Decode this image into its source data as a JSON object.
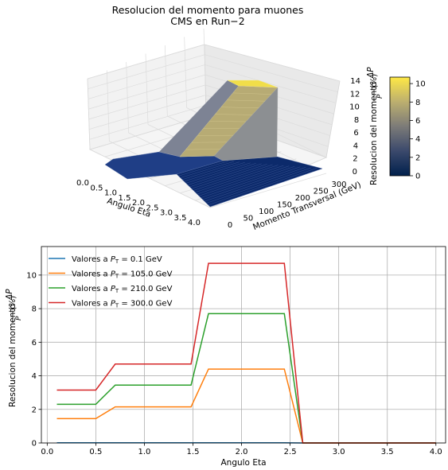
{
  "chart_data": [
    {
      "type": "surface3d",
      "title": "Resolucion del momento para muones",
      "subtitle": "CMS en Run−2",
      "xlabel": "Angulo Eta",
      "ylabel": "Momento Transversal (GeV)",
      "zlabel": "Resolucion del momento",
      "zlabel_frac_num": "ΔP",
      "zlabel_frac_den": "P",
      "zlabel_unit": "(%)",
      "x_ticks": [
        "0.0",
        "0.5",
        "1.0",
        "1.5",
        "2.0",
        "2.5",
        "3.0",
        "3.5",
        "4.0"
      ],
      "y_ticks": [
        "0",
        "50",
        "100",
        "150",
        "200",
        "250",
        "300"
      ],
      "z_ticks": [
        "0",
        "2",
        "4",
        "6",
        "8",
        "10",
        "12",
        "14"
      ],
      "colorbar_ticks": [
        "0",
        "2",
        "4",
        "6",
        "8",
        "10"
      ],
      "colormap": "cividis",
      "xlim": [
        0,
        4
      ],
      "ylim": [
        0,
        300
      ],
      "zlim": [
        0,
        14
      ],
      "colorbar_range": [
        0,
        10.7
      ],
      "grid": true
    },
    {
      "type": "line",
      "xlabel": "Angulo Eta",
      "ylabel": "Resolucion del momento",
      "ylabel_frac_num": "ΔP",
      "ylabel_frac_den": "P",
      "ylabel_unit": "(%)",
      "xlim": [
        -0.06,
        4.1
      ],
      "ylim": [
        0,
        11.7
      ],
      "x_ticks": [
        "0.0",
        "0.5",
        "1.0",
        "1.5",
        "2.0",
        "2.5",
        "3.0",
        "3.5",
        "4.0"
      ],
      "y_ticks": [
        "0",
        "2",
        "4",
        "6",
        "8",
        "10"
      ],
      "grid": true,
      "legend_position": "top-left",
      "x": [
        0.1,
        0.5,
        0.7,
        1.0,
        1.48,
        1.66,
        2.0,
        2.44,
        2.63,
        3.0,
        3.5,
        4.0
      ],
      "series": [
        {
          "label_prefix": "Valores a ",
          "label_var": "P",
          "label_sub": "T",
          "label_suffix": " = 0.1 GeV",
          "color": "#1f77b4",
          "values": [
            0.01,
            0.01,
            0.01,
            0.01,
            0.01,
            0.01,
            0.01,
            0.01,
            0,
            0,
            0,
            0
          ]
        },
        {
          "label_prefix": "Valores a ",
          "label_var": "P",
          "label_sub": "T",
          "label_suffix": " = 105.0 GeV",
          "color": "#ff7f0e",
          "values": [
            1.45,
            1.45,
            2.15,
            2.15,
            2.15,
            4.4,
            4.4,
            4.4,
            0,
            0,
            0,
            0
          ]
        },
        {
          "label_prefix": "Valores a ",
          "label_var": "P",
          "label_sub": "T",
          "label_suffix": " = 210.0 GeV",
          "color": "#2ca02c",
          "values": [
            2.3,
            2.3,
            3.45,
            3.45,
            3.45,
            7.7,
            7.7,
            7.7,
            0,
            0,
            0,
            0
          ]
        },
        {
          "label_prefix": "Valores a ",
          "label_var": "P",
          "label_sub": "T",
          "label_suffix": " = 300.0 GeV",
          "color": "#d62728",
          "values": [
            3.15,
            3.15,
            4.7,
            4.7,
            4.7,
            10.7,
            10.7,
            10.7,
            0,
            0,
            0,
            0
          ]
        }
      ]
    }
  ]
}
